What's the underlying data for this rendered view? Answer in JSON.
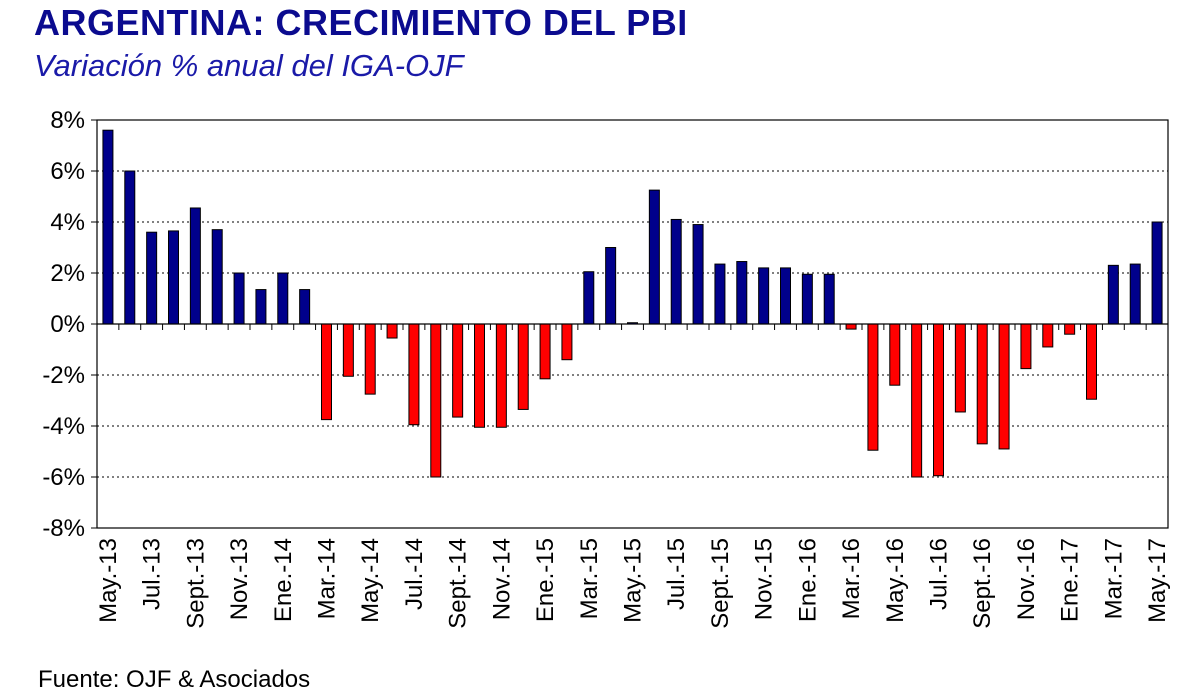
{
  "header": {
    "title": "ARGENTINA: CRECIMIENTO DEL PBI",
    "subtitle": "Variación % anual del IGA-OJF"
  },
  "footer": {
    "source": "Fuente: OJF & Asociados"
  },
  "colors": {
    "positive": "#00008b",
    "negative": "#ff0000",
    "title": "#0b0b8f"
  },
  "chart_data": {
    "type": "bar",
    "title": "ARGENTINA: CRECIMIENTO DEL PBI",
    "subtitle": "Variación % anual del IGA-OJF",
    "ylim": [
      -8,
      8
    ],
    "yticks": [
      "8%",
      "6%",
      "4%",
      "2%",
      "0%",
      "-2%",
      "-4%",
      "-6%",
      "-8%"
    ],
    "grid": "horizontal dotted",
    "categories": [
      "May.-13",
      "Jun.-13",
      "Jul.-13",
      "Ago.-13",
      "Sept.-13",
      "Oct.-13",
      "Nov.-13",
      "Dic.-13",
      "Ene.-14",
      "Feb.-14",
      "Mar.-14",
      "Abr.-14",
      "May.-14",
      "Jun.-14",
      "Jul.-14",
      "Ago.-14",
      "Sept.-14",
      "Oct.-14",
      "Nov.-14",
      "Dic.-14",
      "Ene.-15",
      "Feb.-15",
      "Mar.-15",
      "Abr.-15",
      "May.-15",
      "Jun.-15",
      "Jul.-15",
      "Ago.-15",
      "Sept.-15",
      "Oct.-15",
      "Nov.-15",
      "Dic.-15",
      "Ene.-16",
      "Feb.-16",
      "Mar.-16",
      "Abr.-16",
      "May.-16",
      "Jun.-16",
      "Jul.-16",
      "Ago.-16",
      "Sept.-16",
      "Oct.-16",
      "Nov.-16",
      "Dic.-16",
      "Ene.-17",
      "Feb.-17",
      "Mar.-17",
      "Abr.-17",
      "May.-17"
    ],
    "tick_labels": [
      "May.-13",
      "Jul.-13",
      "Sept.-13",
      "Nov.-13",
      "Ene.-14",
      "Mar.-14",
      "May.-14",
      "Jul.-14",
      "Sept.-14",
      "Nov.-14",
      "Ene.-15",
      "Mar.-15",
      "May.-15",
      "Jul.-15",
      "Sept.-15",
      "Nov.-15",
      "Ene.-16",
      "Mar.-16",
      "May.-16",
      "Jul.-16",
      "Sept.-16",
      "Nov.-16",
      "Ene.-17",
      "Mar.-17",
      "May.-17"
    ],
    "values": [
      7.6,
      6.0,
      3.6,
      3.65,
      4.55,
      3.7,
      2.0,
      1.35,
      2.0,
      1.35,
      -3.75,
      -2.05,
      -2.75,
      -0.55,
      -3.95,
      -6.0,
      -3.65,
      -4.05,
      -4.05,
      -3.35,
      -2.15,
      -1.4,
      2.05,
      3.0,
      0.05,
      5.25,
      4.1,
      3.9,
      2.35,
      2.45,
      2.2,
      2.2,
      1.95,
      1.95,
      -0.2,
      -4.95,
      -2.4,
      -6.0,
      -5.95,
      -3.45,
      -4.7,
      -4.9,
      -1.75,
      -0.9,
      -0.4,
      -2.95,
      2.3,
      2.35,
      4.0
    ]
  }
}
